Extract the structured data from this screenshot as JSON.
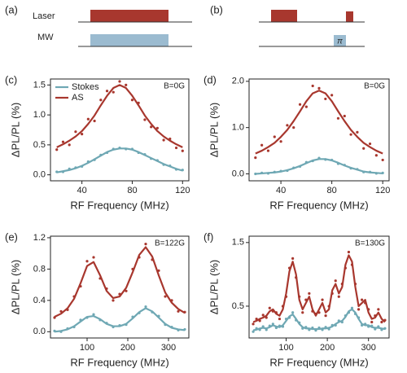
{
  "diagram": {
    "a": {
      "label": "(a)",
      "laser": "Laser",
      "mw": "MW"
    },
    "b": {
      "label": "(b)",
      "pi": "π"
    }
  },
  "chart_data": [
    {
      "type": "line",
      "panel": "(c)",
      "annotation": "B=0G",
      "x_label": "RF Frequency (MHz)",
      "y_label": "ΔPL/PL (%)",
      "legend": "upper left",
      "xlim": [
        15,
        125
      ],
      "xticks": [
        40,
        80,
        120
      ],
      "ylim": [
        -0.1,
        1.6
      ],
      "yticks": [
        {
          "value": 0,
          "label": "0.0"
        },
        {
          "value": 0.5,
          "label": "0.5"
        },
        {
          "value": 1,
          "label": "1.0"
        },
        {
          "value": 1.5,
          "label": "1.5"
        }
      ],
      "x": [
        20,
        25,
        30,
        35,
        40,
        45,
        50,
        55,
        60,
        65,
        70,
        75,
        80,
        85,
        90,
        95,
        100,
        105,
        110,
        115,
        120
      ],
      "series": [
        {
          "name": "Stokes",
          "color": "#6fa8b4",
          "values": [
            0.04,
            0.06,
            0.08,
            0.11,
            0.15,
            0.2,
            0.26,
            0.32,
            0.38,
            0.42,
            0.44,
            0.44,
            0.42,
            0.38,
            0.33,
            0.28,
            0.23,
            0.18,
            0.14,
            0.1,
            0.07
          ],
          "points": [
            0.05,
            0.05,
            0.1,
            0.12,
            0.14,
            0.22,
            0.25,
            0.33,
            0.37,
            0.43,
            0.45,
            0.43,
            0.43,
            0.37,
            0.34,
            0.27,
            0.24,
            0.17,
            0.15,
            0.09,
            0.08
          ]
        },
        {
          "name": "AS",
          "color": "#a8372e",
          "values": [
            0.46,
            0.51,
            0.57,
            0.64,
            0.73,
            0.85,
            0.99,
            1.16,
            1.32,
            1.45,
            1.5,
            1.45,
            1.32,
            1.16,
            0.99,
            0.85,
            0.73,
            0.64,
            0.57,
            0.51,
            0.46
          ],
          "points": [
            0.42,
            0.55,
            0.5,
            0.72,
            0.68,
            0.93,
            0.9,
            1.25,
            1.4,
            1.38,
            1.56,
            1.5,
            1.25,
            1.2,
            0.92,
            0.8,
            0.78,
            0.58,
            0.6,
            0.45,
            0.4
          ]
        }
      ]
    },
    {
      "type": "line",
      "panel": "(d)",
      "annotation": "B=0G",
      "x_label": "RF Frequency (MHz)",
      "y_label": "ΔPL/PL (%)",
      "xlim": [
        15,
        125
      ],
      "xticks": [
        40,
        80,
        120
      ],
      "ylim": [
        -0.15,
        2.05
      ],
      "yticks": [
        {
          "value": 0,
          "label": "0.0"
        },
        {
          "value": 1,
          "label": "1.0"
        },
        {
          "value": 2,
          "label": "2.0"
        }
      ],
      "x": [
        20,
        25,
        30,
        35,
        40,
        45,
        50,
        55,
        60,
        65,
        70,
        75,
        80,
        85,
        90,
        95,
        100,
        105,
        110,
        115,
        120
      ],
      "series": [
        {
          "color": "#6fa8b4",
          "values": [
            0.0,
            0.01,
            0.02,
            0.03,
            0.05,
            0.08,
            0.12,
            0.17,
            0.23,
            0.29,
            0.32,
            0.32,
            0.29,
            0.24,
            0.18,
            0.13,
            0.09,
            0.05,
            0.03,
            0.02,
            0.01
          ],
          "points": [
            0.0,
            0.02,
            0.01,
            0.04,
            0.06,
            0.07,
            0.13,
            0.16,
            0.25,
            0.28,
            0.34,
            0.31,
            0.3,
            0.22,
            0.19,
            0.12,
            0.1,
            0.04,
            0.04,
            0.01,
            0.02
          ]
        },
        {
          "color": "#a8372e",
          "values": [
            0.44,
            0.5,
            0.58,
            0.67,
            0.8,
            0.95,
            1.14,
            1.35,
            1.57,
            1.74,
            1.8,
            1.74,
            1.57,
            1.35,
            1.14,
            0.95,
            0.8,
            0.67,
            0.58,
            0.5,
            0.44
          ],
          "points": [
            0.35,
            0.62,
            0.5,
            0.8,
            0.7,
            1.05,
            1.0,
            1.5,
            1.45,
            1.9,
            1.85,
            1.62,
            1.7,
            1.2,
            1.25,
            0.85,
            0.9,
            0.55,
            0.65,
            0.4,
            0.3
          ]
        }
      ]
    },
    {
      "type": "line",
      "panel": "(e)",
      "annotation": "B=122G",
      "x_label": "RF Frequency (MHz)",
      "y_label": "ΔPL/PL (%)",
      "xlim": [
        10,
        350
      ],
      "xticks": [
        100,
        200,
        300
      ],
      "ylim": [
        -0.08,
        1.22
      ],
      "yticks": [
        {
          "value": 0,
          "label": "0.0"
        },
        {
          "value": 0.4,
          "label": "0.4"
        },
        {
          "value": 0.8,
          "label": "0.8"
        },
        {
          "value": 1.2,
          "label": "1.2"
        }
      ],
      "x": [
        20,
        36,
        52,
        68,
        84,
        100,
        116,
        132,
        148,
        164,
        180,
        196,
        212,
        228,
        244,
        260,
        276,
        292,
        308,
        324,
        340
      ],
      "series": [
        {
          "color": "#6fa8b4",
          "values": [
            0.0,
            0.01,
            0.03,
            0.07,
            0.13,
            0.19,
            0.2,
            0.16,
            0.1,
            0.07,
            0.07,
            0.1,
            0.17,
            0.25,
            0.3,
            0.26,
            0.18,
            0.1,
            0.05,
            0.03,
            0.02
          ],
          "points": [
            0.01,
            0.0,
            0.04,
            0.06,
            0.15,
            0.18,
            0.22,
            0.15,
            0.11,
            0.06,
            0.08,
            0.09,
            0.19,
            0.24,
            0.32,
            0.25,
            0.2,
            0.09,
            0.06,
            0.02,
            0.03
          ]
        },
        {
          "color": "#a8372e",
          "values": [
            0.19,
            0.23,
            0.3,
            0.42,
            0.62,
            0.84,
            0.89,
            0.72,
            0.52,
            0.43,
            0.45,
            0.56,
            0.76,
            0.98,
            1.08,
            0.96,
            0.72,
            0.5,
            0.37,
            0.29,
            0.24
          ],
          "points": [
            0.18,
            0.26,
            0.28,
            0.45,
            0.58,
            0.9,
            0.95,
            0.68,
            0.55,
            0.4,
            0.48,
            0.52,
            0.8,
            0.95,
            1.12,
            0.92,
            0.78,
            0.45,
            0.4,
            0.26,
            0.25
          ]
        }
      ]
    },
    {
      "type": "line",
      "panel": "(f)",
      "annotation": "B=130G",
      "x_label": "RF Frequency (MHz)",
      "y_label": "ΔPL/PL (%)",
      "xlim": [
        10,
        350
      ],
      "xticks": [
        100,
        200,
        300
      ],
      "ylim": [
        0.0,
        1.6
      ],
      "yticks": [
        0.5,
        1.5
      ],
      "x": [
        20,
        28,
        36,
        44,
        52,
        60,
        68,
        76,
        84,
        92,
        100,
        108,
        116,
        124,
        132,
        140,
        148,
        156,
        164,
        172,
        180,
        188,
        196,
        204,
        212,
        220,
        228,
        236,
        244,
        252,
        260,
        268,
        276,
        284,
        292,
        300,
        308,
        316,
        324,
        332,
        340
      ],
      "series": [
        {
          "color": "#6fa8b4",
          "values": [
            0.12,
            0.13,
            0.15,
            0.16,
            0.15,
            0.17,
            0.2,
            0.18,
            0.17,
            0.2,
            0.27,
            0.34,
            0.37,
            0.3,
            0.22,
            0.17,
            0.15,
            0.15,
            0.14,
            0.14,
            0.14,
            0.15,
            0.15,
            0.16,
            0.18,
            0.22,
            0.25,
            0.27,
            0.33,
            0.42,
            0.45,
            0.4,
            0.3,
            0.22,
            0.2,
            0.2,
            0.17,
            0.16,
            0.16,
            0.15,
            0.14
          ],
          "points": [
            0.1,
            0.15,
            0.13,
            0.18,
            0.13,
            0.19,
            0.22,
            0.16,
            0.19,
            0.18,
            0.3,
            0.32,
            0.4,
            0.28,
            0.24,
            0.15,
            0.17,
            0.13,
            0.16,
            0.12,
            0.16,
            0.13,
            0.17,
            0.14,
            0.2,
            0.2,
            0.27,
            0.25,
            0.35,
            0.4,
            0.47,
            0.38,
            0.32,
            0.2,
            0.22,
            0.18,
            0.19,
            0.14,
            0.18,
            0.13,
            0.15
          ]
        },
        {
          "color": "#a8372e",
          "values": [
            0.25,
            0.27,
            0.3,
            0.32,
            0.35,
            0.42,
            0.45,
            0.38,
            0.35,
            0.45,
            0.7,
            1.05,
            1.2,
            1.0,
            0.6,
            0.45,
            0.55,
            0.65,
            0.45,
            0.35,
            0.45,
            0.55,
            0.4,
            0.45,
            0.75,
            0.85,
            0.7,
            0.8,
            1.15,
            1.3,
            1.2,
            0.8,
            0.5,
            0.55,
            0.6,
            0.4,
            0.3,
            0.32,
            0.4,
            0.3,
            0.25
          ],
          "points": [
            0.22,
            0.3,
            0.27,
            0.36,
            0.32,
            0.47,
            0.42,
            0.4,
            0.3,
            0.5,
            0.65,
            1.1,
            1.25,
            0.95,
            0.65,
            0.4,
            0.6,
            0.7,
            0.42,
            0.38,
            0.4,
            0.6,
            0.35,
            0.5,
            0.7,
            0.9,
            0.65,
            0.85,
            1.1,
            1.35,
            1.15,
            0.85,
            0.45,
            0.6,
            0.55,
            0.45,
            0.25,
            0.35,
            0.45,
            0.25,
            0.28
          ]
        }
      ]
    }
  ]
}
